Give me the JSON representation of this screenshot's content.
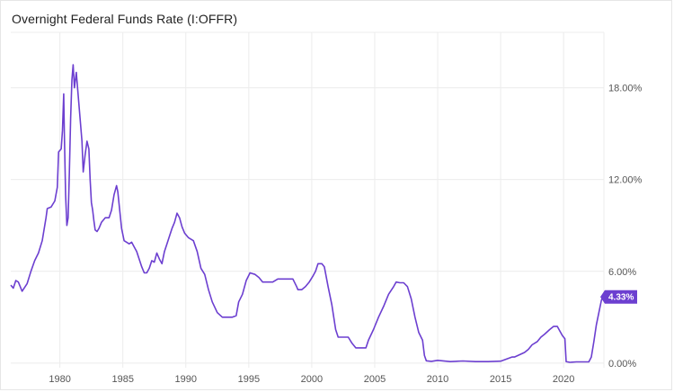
{
  "title": "Overnight Federal Funds Rate (I:OFFR)",
  "colors": {
    "series": "#6c3fd0",
    "badge": "#6c3fd0",
    "grid": "#ececec"
  },
  "chart_data": {
    "type": "line",
    "title": "Overnight Federal Funds Rate (I:OFFR)",
    "xlabel": "",
    "ylabel": "",
    "xlim": [
      1976.1,
      2023.2
    ],
    "ylim": [
      -0.3,
      21.5
    ],
    "y_ticks": [
      0,
      6,
      12,
      18
    ],
    "y_tick_labels": [
      "0.00%",
      "6.00%",
      "12.00%",
      "18.00%"
    ],
    "x_ticks": [
      1980,
      1985,
      1990,
      1995,
      2000,
      2005,
      2010,
      2015,
      2020
    ],
    "x_tick_labels": [
      "1980",
      "1985",
      "1990",
      "1995",
      "2000",
      "2005",
      "2010",
      "2015",
      "2020"
    ],
    "grid": true,
    "legend": "none",
    "last_value_label": "4.33%",
    "series": [
      {
        "name": "",
        "x": [
          1976.1,
          1976.3,
          1976.5,
          1976.7,
          1977.0,
          1977.4,
          1977.7,
          1978.0,
          1978.3,
          1978.6,
          1978.9,
          1979.0,
          1979.3,
          1979.6,
          1979.8,
          1979.9,
          1980.1,
          1980.2,
          1980.3,
          1980.35,
          1980.45,
          1980.55,
          1980.65,
          1980.75,
          1980.85,
          1980.95,
          1981.05,
          1981.15,
          1981.3,
          1981.45,
          1981.6,
          1981.75,
          1981.85,
          1982.0,
          1982.15,
          1982.3,
          1982.4,
          1982.5,
          1982.6,
          1982.7,
          1982.8,
          1982.95,
          1983.1,
          1983.3,
          1983.6,
          1983.9,
          1984.1,
          1984.3,
          1984.5,
          1984.6,
          1984.75,
          1984.9,
          1985.1,
          1985.3,
          1985.5,
          1985.7,
          1985.9,
          1986.1,
          1986.3,
          1986.5,
          1986.7,
          1986.9,
          1987.1,
          1987.3,
          1987.5,
          1987.7,
          1987.9,
          1988.1,
          1988.3,
          1988.5,
          1988.7,
          1988.9,
          1989.1,
          1989.3,
          1989.5,
          1989.7,
          1989.9,
          1990.2,
          1990.6,
          1990.9,
          1991.2,
          1991.5,
          1991.8,
          1992.1,
          1992.5,
          1992.9,
          1993.3,
          1993.7,
          1994.0,
          1994.2,
          1994.5,
          1994.8,
          1995.1,
          1995.5,
          1995.8,
          1996.1,
          1996.5,
          1996.9,
          1997.3,
          1997.7,
          1998.1,
          1998.5,
          1998.8,
          1998.9,
          1999.2,
          1999.5,
          1999.8,
          2000.1,
          2000.3,
          2000.5,
          2000.8,
          2001.0,
          2001.3,
          2001.6,
          2001.9,
          2002.1,
          2002.5,
          2002.9,
          2003.2,
          2003.5,
          2003.9,
          2004.3,
          2004.5,
          2004.9,
          2005.3,
          2005.7,
          2006.1,
          2006.5,
          2006.7,
          2007.0,
          2007.3,
          2007.6,
          2007.9,
          2008.2,
          2008.5,
          2008.8,
          2008.95,
          2009.1,
          2009.5,
          2010.0,
          2011.0,
          2012.0,
          2013.0,
          2014.0,
          2015.0,
          2015.9,
          2016.1,
          2016.9,
          2017.2,
          2017.5,
          2017.9,
          2018.2,
          2018.5,
          2018.9,
          2019.2,
          2019.5,
          2019.7,
          2019.9,
          2020.1,
          2020.2,
          2020.5,
          2021.0,
          2021.5,
          2022.0,
          2022.2,
          2022.4,
          2022.6,
          2022.8,
          2023.0,
          2023.1
        ],
        "y": [
          5.1,
          4.9,
          5.4,
          5.3,
          4.7,
          5.2,
          6.0,
          6.7,
          7.2,
          8.0,
          9.5,
          10.1,
          10.2,
          10.6,
          11.5,
          13.8,
          14.0,
          15.2,
          17.6,
          15.0,
          11.0,
          9.0,
          9.5,
          12.5,
          16.0,
          18.5,
          19.5,
          18.0,
          19.0,
          17.5,
          16.0,
          14.5,
          12.5,
          13.6,
          14.5,
          14.0,
          12.0,
          10.5,
          10.0,
          9.3,
          8.7,
          8.6,
          8.8,
          9.2,
          9.5,
          9.5,
          10.0,
          11.0,
          11.6,
          11.2,
          10.0,
          8.8,
          8.0,
          7.9,
          7.8,
          7.9,
          7.6,
          7.3,
          6.8,
          6.3,
          5.9,
          5.9,
          6.2,
          6.7,
          6.6,
          7.2,
          6.8,
          6.5,
          7.3,
          7.8,
          8.3,
          8.8,
          9.2,
          9.8,
          9.5,
          8.9,
          8.5,
          8.2,
          8.0,
          7.3,
          6.2,
          5.8,
          4.8,
          4.0,
          3.3,
          3.0,
          3.0,
          3.0,
          3.1,
          4.0,
          4.5,
          5.4,
          5.9,
          5.8,
          5.6,
          5.3,
          5.3,
          5.3,
          5.5,
          5.5,
          5.5,
          5.5,
          5.0,
          4.8,
          4.8,
          5.0,
          5.3,
          5.7,
          6.0,
          6.5,
          6.5,
          6.3,
          5.0,
          3.8,
          2.2,
          1.7,
          1.7,
          1.7,
          1.3,
          1.0,
          1.0,
          1.0,
          1.5,
          2.2,
          3.0,
          3.7,
          4.5,
          5.0,
          5.3,
          5.25,
          5.25,
          5.0,
          4.2,
          3.0,
          2.0,
          1.5,
          0.5,
          0.15,
          0.12,
          0.18,
          0.1,
          0.14,
          0.1,
          0.1,
          0.13,
          0.4,
          0.4,
          0.7,
          0.9,
          1.2,
          1.4,
          1.7,
          1.9,
          2.2,
          2.4,
          2.4,
          2.1,
          1.8,
          1.6,
          0.1,
          0.05,
          0.08,
          0.08,
          0.08,
          0.4,
          1.4,
          2.5,
          3.3,
          4.1,
          4.33
        ]
      }
    ]
  }
}
